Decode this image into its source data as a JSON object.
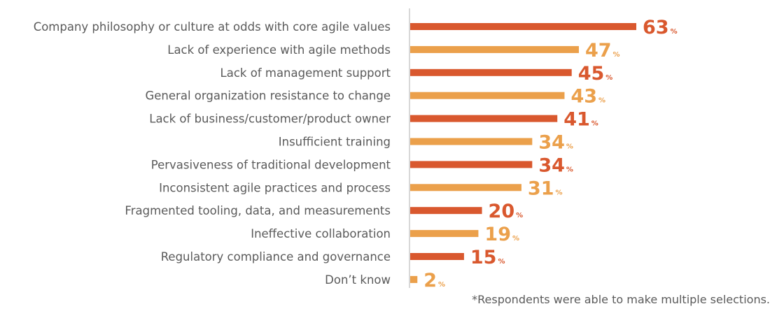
{
  "chart_data": {
    "type": "bar",
    "orientation": "horizontal",
    "categories": [
      "Company philosophy or culture at odds with core agile values",
      "Lack of experience with agile methods",
      "Lack of management support",
      "General organization resistance to change",
      "Lack of business/customer/product owner",
      "Insufficient training",
      "Pervasiveness of traditional development",
      "Inconsistent agile practices and process",
      "Fragmented tooling, data, and measurements",
      "Ineffective collaboration",
      "Regulatory compliance and governance",
      "Don’t know"
    ],
    "values": [
      63,
      47,
      45,
      43,
      41,
      34,
      34,
      31,
      20,
      19,
      15,
      2
    ],
    "unit": "%",
    "xlim": [
      0,
      63
    ],
    "grid": false,
    "legend": "none",
    "colors": [
      "#d9582e",
      "#eba04b"
    ],
    "title": "",
    "xlabel": "",
    "ylabel": ""
  },
  "footnote": "*Respondents were able to make multiple selections."
}
